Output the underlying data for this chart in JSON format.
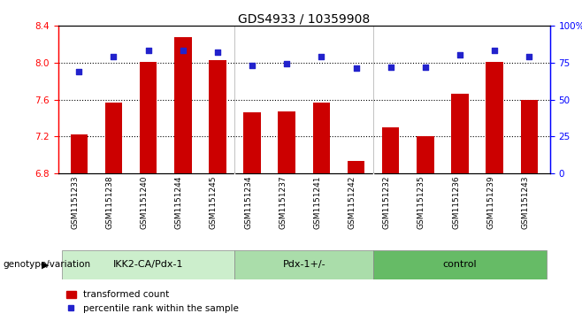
{
  "title": "GDS4933 / 10359908",
  "samples": [
    "GSM1151233",
    "GSM1151238",
    "GSM1151240",
    "GSM1151244",
    "GSM1151245",
    "GSM1151234",
    "GSM1151237",
    "GSM1151241",
    "GSM1151242",
    "GSM1151232",
    "GSM1151235",
    "GSM1151236",
    "GSM1151239",
    "GSM1151243"
  ],
  "red_values": [
    7.22,
    7.57,
    8.01,
    8.28,
    8.03,
    7.46,
    7.47,
    7.57,
    6.93,
    7.3,
    7.2,
    7.66,
    8.01,
    7.6
  ],
  "blue_values": [
    69,
    79,
    83,
    83,
    82,
    73,
    74,
    79,
    71,
    72,
    72,
    80,
    83,
    79
  ],
  "groups": [
    {
      "label": "IKK2-CA/Pdx-1",
      "start": 0,
      "end": 5
    },
    {
      "label": "Pdx-1+/-",
      "start": 5,
      "end": 9
    },
    {
      "label": "control",
      "start": 9,
      "end": 14
    }
  ],
  "group_colors": [
    "#cceecc",
    "#aaddaa",
    "#66bb66"
  ],
  "ylim_left": [
    6.8,
    8.4
  ],
  "ylim_right": [
    0,
    100
  ],
  "yticks_left": [
    6.8,
    7.2,
    7.6,
    8.0,
    8.4
  ],
  "yticks_right": [
    0,
    25,
    50,
    75,
    100
  ],
  "ytick_labels_right": [
    "0",
    "25",
    "50",
    "75",
    "100%"
  ],
  "hlines": [
    8.0,
    7.6,
    7.2
  ],
  "bar_color": "#cc0000",
  "dot_color": "#2222cc",
  "bar_width": 0.5,
  "bar_bottom": 6.8,
  "legend_red": "transformed count",
  "legend_blue": "percentile rank within the sample",
  "genotype_label": "genotype/variation",
  "tick_bg_color": "#cccccc",
  "group_border_color": "#888888"
}
